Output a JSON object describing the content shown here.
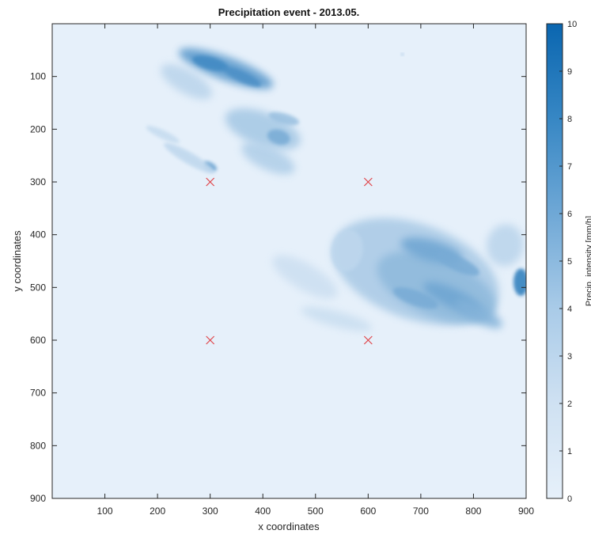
{
  "chart_data": {
    "type": "heatmap",
    "title": "Precipitation event - 2013.05.",
    "xlabel": "x coordinates",
    "ylabel": "y coordinates",
    "xlim": [
      0,
      900
    ],
    "ylim": [
      0,
      900
    ],
    "y_direction": "reversed",
    "x_ticks": [
      100,
      200,
      300,
      400,
      500,
      600,
      700,
      800,
      900
    ],
    "y_ticks": [
      100,
      200,
      300,
      400,
      500,
      600,
      700,
      800,
      900
    ],
    "grid": false,
    "colorbar": {
      "label": "Precip. intensity [mm/h]",
      "range": [
        0,
        10
      ],
      "ticks": [
        0,
        1,
        2,
        3,
        4,
        5,
        6,
        7,
        8,
        9,
        10
      ],
      "color_low": "#e6f0fa",
      "color_high": "#0a66b0"
    },
    "markers": {
      "symbol": "x",
      "color": "#e0454a",
      "points": [
        {
          "x": 300,
          "y": 300
        },
        {
          "x": 600,
          "y": 300
        },
        {
          "x": 300,
          "y": 600
        },
        {
          "x": 600,
          "y": 600
        }
      ]
    },
    "rain_cells": [
      {
        "x": 330,
        "y": 85,
        "rx": 95,
        "ry": 22,
        "angle": 20,
        "intensity": 6.5
      },
      {
        "x": 300,
        "y": 75,
        "rx": 35,
        "ry": 12,
        "angle": 15,
        "intensity": 7.5
      },
      {
        "x": 360,
        "y": 100,
        "rx": 40,
        "ry": 10,
        "angle": 25,
        "intensity": 7
      },
      {
        "x": 255,
        "y": 110,
        "rx": 55,
        "ry": 22,
        "angle": 30,
        "intensity": 2
      },
      {
        "x": 400,
        "y": 200,
        "rx": 75,
        "ry": 32,
        "angle": 20,
        "intensity": 3
      },
      {
        "x": 430,
        "y": 215,
        "rx": 22,
        "ry": 14,
        "angle": 15,
        "intensity": 5
      },
      {
        "x": 440,
        "y": 180,
        "rx": 30,
        "ry": 10,
        "angle": 15,
        "intensity": 3.5
      },
      {
        "x": 410,
        "y": 255,
        "rx": 55,
        "ry": 22,
        "angle": 25,
        "intensity": 2.5
      },
      {
        "x": 300,
        "y": 270,
        "rx": 14,
        "ry": 7,
        "angle": 30,
        "intensity": 6
      },
      {
        "x": 260,
        "y": 255,
        "rx": 55,
        "ry": 11,
        "angle": 30,
        "intensity": 1.8
      },
      {
        "x": 210,
        "y": 210,
        "rx": 35,
        "ry": 8,
        "angle": 25,
        "intensity": 1.5
      },
      {
        "x": 690,
        "y": 470,
        "rx": 165,
        "ry": 90,
        "angle": 20,
        "intensity": 2.8
      },
      {
        "x": 730,
        "y": 500,
        "rx": 120,
        "ry": 55,
        "angle": 22,
        "intensity": 4
      },
      {
        "x": 720,
        "y": 430,
        "rx": 60,
        "ry": 20,
        "angle": 15,
        "intensity": 5.5
      },
      {
        "x": 760,
        "y": 520,
        "rx": 60,
        "ry": 18,
        "angle": 25,
        "intensity": 5.5
      },
      {
        "x": 810,
        "y": 550,
        "rx": 50,
        "ry": 16,
        "angle": 28,
        "intensity": 4.5
      },
      {
        "x": 690,
        "y": 520,
        "rx": 45,
        "ry": 14,
        "angle": 20,
        "intensity": 5
      },
      {
        "x": 770,
        "y": 455,
        "rx": 45,
        "ry": 14,
        "angle": 25,
        "intensity": 5
      },
      {
        "x": 890,
        "y": 490,
        "rx": 14,
        "ry": 26,
        "angle": 0,
        "intensity": 8.5
      },
      {
        "x": 860,
        "y": 420,
        "rx": 35,
        "ry": 40,
        "angle": 10,
        "intensity": 2
      },
      {
        "x": 480,
        "y": 480,
        "rx": 70,
        "ry": 25,
        "angle": 30,
        "intensity": 1.2
      },
      {
        "x": 560,
        "y": 430,
        "rx": 30,
        "ry": 40,
        "angle": 10,
        "intensity": 1.8
      },
      {
        "x": 540,
        "y": 560,
        "rx": 70,
        "ry": 15,
        "angle": 15,
        "intensity": 1.3
      },
      {
        "x": 665,
        "y": 58,
        "rx": 2,
        "ry": 2,
        "angle": 0,
        "intensity": 6
      }
    ]
  }
}
